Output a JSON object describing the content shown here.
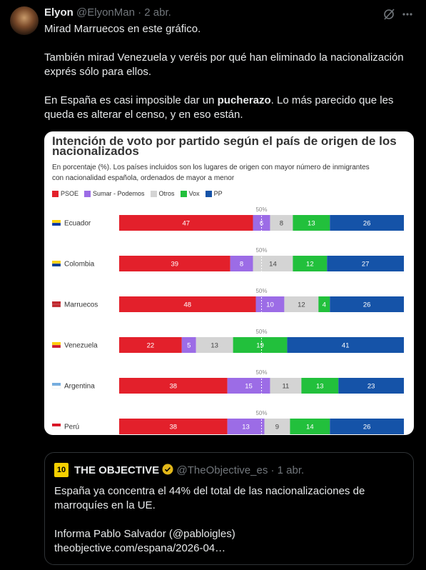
{
  "tweet": {
    "author": {
      "name": "Elyon",
      "handle": "@ElyonMan",
      "date": "2 abr."
    },
    "separator": "·",
    "paragraphs": [
      [
        {
          "text": "Mirad Marruecos en este gráfico."
        }
      ],
      [
        {
          "text": "También mirad Venezuela y veréis por qué han eliminado la nacionalización exprés sólo para ellos."
        }
      ],
      [
        {
          "text": "En España es casi imposible dar un "
        },
        {
          "text": "pucherazo",
          "bold": true
        },
        {
          "text": ". Lo más parecido que les queda es alterar el censo, y en eso están."
        }
      ]
    ]
  },
  "chart_data": {
    "type": "bar",
    "orientation": "horizontal",
    "stacked": true,
    "title": "Intención de voto por partido según el país de origen de los nacionalizados",
    "subtitle": "En porcentaje (%). Los países incluidos son los lugares de origen con mayor número de inmigrantes con nacionalidad española, ordenados de mayor a menor",
    "categories": [
      "Ecuador",
      "Colombia",
      "Marruecos",
      "Venezuela",
      "Argentina",
      "Perú"
    ],
    "series": [
      {
        "name": "PSOE",
        "color": "#e3202b",
        "values": [
          47,
          39,
          48,
          22,
          38,
          38
        ]
      },
      {
        "name": "Sumar - Podemos",
        "color": "#9c6ce6",
        "values": [
          6,
          8,
          10,
          5,
          15,
          13
        ]
      },
      {
        "name": "Otros",
        "color": "#d4d4d4",
        "values": [
          8,
          14,
          12,
          13,
          11,
          9
        ]
      },
      {
        "name": "Vox",
        "color": "#22c03c",
        "values": [
          13,
          12,
          4,
          19,
          13,
          14
        ]
      },
      {
        "name": "PP",
        "color": "#1553a8",
        "values": [
          26,
          27,
          26,
          41,
          23,
          26
        ]
      }
    ],
    "xlim": [
      0,
      100
    ],
    "midline": {
      "value": 50,
      "label": "50%"
    },
    "legend": "top-left"
  },
  "quote": {
    "logo_text": "10",
    "name": "THE OBJECTIVE",
    "handle": "@TheObjective_es",
    "date": "1 abr.",
    "paragraphs": [
      [
        "España ya concentra el 44% del total de las nacionalizaciones de marroquíes en la UE."
      ],
      [
        "Informa Pablo Salvador (@pabloigles)",
        "theobjective.com/espana/2026-04…"
      ]
    ]
  }
}
